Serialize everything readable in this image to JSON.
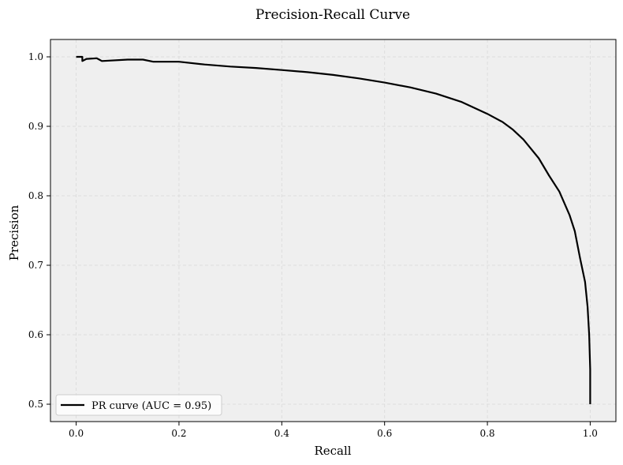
{
  "chart_data": {
    "type": "line",
    "title": "Precision-Recall Curve",
    "xlabel": "Recall",
    "ylabel": "Precision",
    "xlim": [
      -0.05,
      1.05
    ],
    "ylim": [
      0.475,
      1.025
    ],
    "xticks": [
      0.0,
      0.2,
      0.4,
      0.6,
      0.8,
      1.0
    ],
    "xtick_labels": [
      "0.0",
      "0.2",
      "0.4",
      "0.6",
      "0.8",
      "1.0"
    ],
    "yticks": [
      0.5,
      0.6,
      0.7,
      0.8,
      0.9,
      1.0
    ],
    "ytick_labels": [
      "0.5",
      "0.6",
      "0.7",
      "0.8",
      "0.9",
      "1.0"
    ],
    "grid": true,
    "legend_position": "lower-left",
    "colors": {
      "plot_background": "#efefef",
      "curve": "#000000",
      "grid": "#dddddd"
    },
    "series": [
      {
        "name": "PR curve (AUC = 0.95)",
        "x": [
          0.0,
          0.012,
          0.012,
          0.02,
          0.04,
          0.045,
          0.05,
          0.1,
          0.13,
          0.15,
          0.2,
          0.25,
          0.3,
          0.35,
          0.4,
          0.45,
          0.5,
          0.55,
          0.6,
          0.65,
          0.7,
          0.75,
          0.8,
          0.83,
          0.85,
          0.87,
          0.9,
          0.92,
          0.94,
          0.96,
          0.97,
          0.98,
          0.99,
          0.995,
          0.998,
          1.0,
          1.0
        ],
        "y": [
          1.0,
          1.0,
          0.994,
          0.997,
          0.998,
          0.996,
          0.994,
          0.996,
          0.996,
          0.993,
          0.993,
          0.989,
          0.986,
          0.984,
          0.981,
          0.978,
          0.974,
          0.969,
          0.963,
          0.956,
          0.947,
          0.935,
          0.918,
          0.906,
          0.895,
          0.881,
          0.854,
          0.829,
          0.806,
          0.772,
          0.749,
          0.711,
          0.676,
          0.64,
          0.6,
          0.55,
          0.5
        ]
      }
    ]
  }
}
